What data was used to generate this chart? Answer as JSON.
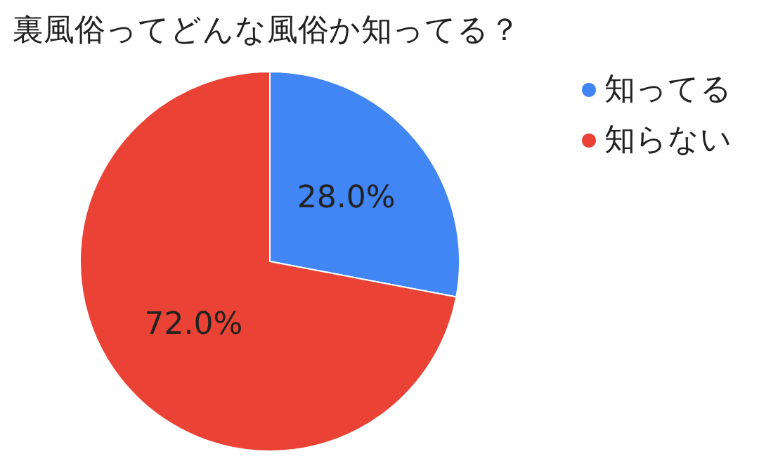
{
  "chart_data": {
    "type": "pie",
    "title": "裏風俗ってどんな風俗か知ってる？",
    "categories": [
      "知ってる",
      "知らない"
    ],
    "values": [
      28.0,
      72.0
    ],
    "colors": [
      "#4285f4",
      "#ea4335"
    ],
    "value_labels": [
      "28.0%",
      "72.0%"
    ],
    "legend": "top right"
  }
}
